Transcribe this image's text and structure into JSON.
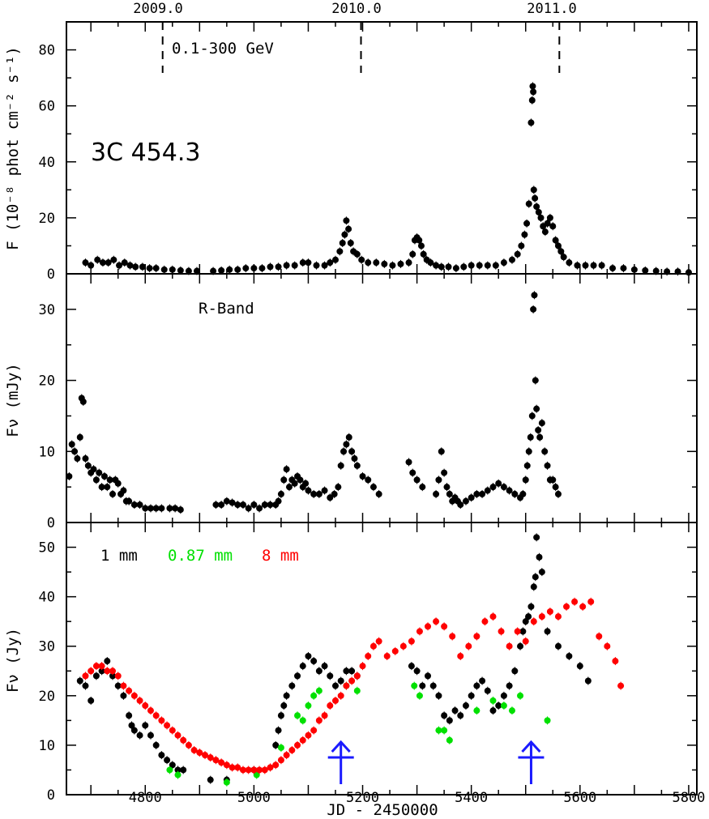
{
  "chart_data": [
    {
      "type": "scatter",
      "panel": "gamma",
      "energy_band_label": "0.1-300 GeV",
      "source_label": "3C 454.3",
      "ylabel": "F (10⁻⁸ phot cm⁻² s⁻¹)",
      "ylim": [
        0,
        90
      ],
      "yticks": [
        0,
        20,
        40,
        60,
        80
      ],
      "xlim": [
        4655,
        5815
      ],
      "top_axis": {
        "tick_labels": [
          "2009.0",
          "2010.0",
          "2011.0"
        ],
        "tick_jd": [
          4832,
          5197,
          5562
        ]
      },
      "marker_color": "#000000",
      "series": [
        {
          "x": [
            4690,
            4700,
            4712,
            4722,
            4732,
            4742,
            4752,
            4762,
            4772,
            4782,
            4795,
            4808,
            4820,
            4835,
            4850,
            4865,
            4880,
            4895,
            4925,
            4940,
            4955,
            4970,
            4985,
            5000,
            5015,
            5030,
            5045,
            5060,
            5075,
            5090,
            5100,
            5115,
            5130,
            5140,
            5150,
            5158,
            5163,
            5167,
            5170,
            5174,
            5178,
            5183,
            5190,
            5198,
            5210,
            5225,
            5240,
            5255,
            5270,
            5285,
            5292,
            5296,
            5300,
            5304,
            5308,
            5312,
            5318,
            5325,
            5335,
            5345,
            5358,
            5372,
            5386,
            5400,
            5415,
            5430,
            5445,
            5460,
            5475,
            5485,
            5492,
            5498,
            5502,
            5506,
            5510,
            5512,
            5513,
            5514,
            5515,
            5517,
            5520,
            5524,
            5528,
            5532,
            5536,
            5540,
            5545,
            5550,
            5555,
            5560,
            5565,
            5570,
            5580,
            5595,
            5610,
            5625,
            5640,
            5660,
            5680,
            5700,
            5720,
            5740,
            5760,
            5780,
            5800
          ],
          "y": [
            4,
            3,
            5,
            4,
            4,
            5,
            3,
            4,
            3,
            2.5,
            2.5,
            2,
            2,
            1.5,
            1.5,
            1.2,
            1,
            1,
            1,
            1.2,
            1.5,
            1.5,
            2,
            2,
            2,
            2.5,
            2.5,
            3,
            3,
            4,
            4,
            3,
            3,
            4,
            5,
            8,
            11,
            14,
            19,
            16,
            11,
            8,
            7,
            5,
            4,
            4,
            3.5,
            3,
            3.5,
            4,
            7,
            12,
            13,
            12,
            10,
            7,
            5,
            4,
            3,
            2.5,
            2.5,
            2,
            2.5,
            3,
            3,
            3,
            3,
            4,
            5,
            7,
            10,
            14,
            18,
            25,
            54,
            62,
            67,
            65,
            30,
            27,
            24,
            22,
            20,
            17,
            15,
            18,
            20,
            17,
            12,
            10,
            8,
            6,
            4,
            3,
            3,
            3,
            3,
            2,
            2,
            1.5,
            1.2,
            1,
            0.8,
            0.8,
            0.5
          ]
        }
      ]
    },
    {
      "type": "scatter",
      "panel": "optical",
      "band_label": "R-Band",
      "ylabel": "Fν (mJy)",
      "ylim": [
        0,
        35
      ],
      "yticks": [
        0,
        10,
        20,
        30
      ],
      "xlim": [
        4655,
        5815
      ],
      "marker_color": "#000000",
      "series": [
        {
          "x": [
            4660,
            4665,
            4670,
            4675,
            4680,
            4683,
            4686,
            4690,
            4695,
            4700,
            4705,
            4710,
            4715,
            4720,
            4725,
            4730,
            4735,
            4740,
            4745,
            4750,
            4755,
            4760,
            4765,
            4770,
            4780,
            4790,
            4800,
            4810,
            4820,
            4830,
            4845,
            4855,
            4865,
            4930,
            4940,
            4950,
            4960,
            4970,
            4980,
            4990,
            5000,
            5010,
            5020,
            5030,
            5040,
            5045,
            5050,
            5055,
            5060,
            5065,
            5070,
            5075,
            5080,
            5085,
            5090,
            5095,
            5100,
            5110,
            5120,
            5130,
            5140,
            5148,
            5155,
            5160,
            5165,
            5170,
            5175,
            5180,
            5185,
            5190,
            5200,
            5210,
            5220,
            5230,
            5285,
            5292,
            5300,
            5310,
            5335,
            5340,
            5345,
            5350,
            5355,
            5360,
            5365,
            5370,
            5375,
            5380,
            5390,
            5400,
            5410,
            5420,
            5430,
            5440,
            5450,
            5460,
            5470,
            5480,
            5490,
            5495,
            5500,
            5503,
            5506,
            5509,
            5512,
            5514,
            5516,
            5518,
            5520,
            5523,
            5526,
            5530,
            5535,
            5540,
            5545,
            5550,
            5555,
            5560
          ],
          "y": [
            6.5,
            11,
            10,
            9,
            12,
            17.5,
            17,
            9,
            8,
            7,
            7.5,
            6,
            7,
            5,
            6.5,
            5,
            6,
            4,
            6,
            5.5,
            4,
            4.5,
            3,
            3,
            2.5,
            2.5,
            2,
            2,
            2,
            2,
            2,
            2,
            1.8,
            2.5,
            2.5,
            3,
            2.8,
            2.5,
            2.5,
            2,
            2.5,
            2,
            2.5,
            2.5,
            2.5,
            3,
            4,
            6,
            7.5,
            5,
            6,
            5.5,
            6.5,
            6,
            5,
            5.5,
            4.5,
            4,
            4,
            4.5,
            3.5,
            4,
            5,
            8,
            10,
            11,
            12,
            10,
            9,
            8,
            6.5,
            6,
            5,
            4,
            8.5,
            7,
            6,
            5,
            4,
            6,
            10,
            7,
            5,
            4,
            3,
            3.5,
            3,
            2.5,
            3,
            3.5,
            4,
            4,
            4.5,
            5,
            5.5,
            5,
            4.5,
            4,
            3.5,
            4,
            6,
            8,
            10,
            12,
            15,
            30,
            32,
            20,
            16,
            13,
            12,
            14,
            10,
            8,
            6,
            6,
            5,
            4
          ]
        }
      ]
    },
    {
      "type": "scatter",
      "panel": "radio",
      "legend": [
        "1 mm",
        "0.87 mm",
        "8 mm"
      ],
      "ylabel": "Fν (Jy)",
      "xlabel": "JD - 2450000",
      "ylim": [
        0,
        55
      ],
      "yticks": [
        0,
        10,
        20,
        30,
        40,
        50
      ],
      "xlim": [
        4655,
        5815
      ],
      "xticks": [
        4800,
        5000,
        5200,
        5400,
        5600,
        5800
      ],
      "arrows_x": [
        5160,
        5510
      ],
      "series": [
        {
          "name": "1 mm",
          "color": "#000000",
          "x": [
            4680,
            4690,
            4700,
            4710,
            4720,
            4730,
            4740,
            4750,
            4760,
            4770,
            4775,
            4780,
            4790,
            4800,
            4810,
            4820,
            4830,
            4840,
            4850,
            4860,
            4870,
            4920,
            4950,
            5000,
            5040,
            5045,
            5050,
            5055,
            5060,
            5070,
            5080,
            5090,
            5100,
            5110,
            5120,
            5130,
            5140,
            5150,
            5160,
            5170,
            5180,
            5190,
            5290,
            5300,
            5310,
            5320,
            5330,
            5340,
            5350,
            5360,
            5370,
            5380,
            5390,
            5400,
            5410,
            5420,
            5430,
            5440,
            5450,
            5460,
            5470,
            5480,
            5490,
            5495,
            5500,
            5505,
            5510,
            5515,
            5518,
            5520,
            5525,
            5530,
            5540,
            5560,
            5580,
            5600,
            5615
          ],
          "y": [
            23,
            22,
            19,
            24,
            25,
            27,
            24,
            22,
            20,
            16,
            14,
            13,
            12,
            14,
            12,
            10,
            8,
            7,
            6,
            5,
            5,
            3,
            3,
            5,
            10,
            13,
            16,
            18,
            20,
            22,
            24,
            26,
            28,
            27,
            25,
            26,
            24,
            22,
            23,
            25,
            25,
            24,
            26,
            25,
            22,
            24,
            22,
            20,
            16,
            15,
            17,
            16,
            18,
            20,
            22,
            23,
            21,
            17,
            18,
            20,
            22,
            25,
            30,
            33,
            35,
            36,
            38,
            42,
            44,
            52,
            48,
            45,
            33,
            30,
            28,
            26,
            23
          ]
        },
        {
          "name": "0.87 mm",
          "color": "#00e000",
          "x": [
            4845,
            4860,
            4950,
            5005,
            5050,
            5080,
            5090,
            5100,
            5110,
            5120,
            5170,
            5190,
            5295,
            5305,
            5340,
            5350,
            5360,
            5410,
            5440,
            5460,
            5475,
            5490,
            5540
          ],
          "y": [
            5,
            4,
            2.5,
            4,
            9.5,
            16,
            15,
            18,
            20,
            21,
            22,
            21,
            22,
            20,
            13,
            13,
            11,
            17,
            19,
            18,
            17,
            20,
            15
          ]
        },
        {
          "name": "8 mm",
          "color": "#ff0000",
          "x": [
            4690,
            4700,
            4710,
            4720,
            4730,
            4740,
            4750,
            4760,
            4770,
            4780,
            4790,
            4800,
            4810,
            4820,
            4830,
            4840,
            4850,
            4860,
            4870,
            4880,
            4890,
            4900,
            4910,
            4920,
            4930,
            4940,
            4950,
            4960,
            4970,
            4980,
            4990,
            5000,
            5010,
            5020,
            5030,
            5040,
            5050,
            5060,
            5070,
            5080,
            5090,
            5100,
            5110,
            5120,
            5130,
            5140,
            5150,
            5160,
            5170,
            5180,
            5190,
            5200,
            5210,
            5220,
            5230,
            5245,
            5260,
            5275,
            5290,
            5305,
            5320,
            5335,
            5350,
            5365,
            5380,
            5395,
            5410,
            5425,
            5440,
            5455,
            5470,
            5485,
            5500,
            5515,
            5530,
            5545,
            5560,
            5575,
            5590,
            5605,
            5620,
            5635,
            5650,
            5665,
            5675
          ],
          "y": [
            24,
            25,
            26,
            26,
            25,
            25,
            24,
            22,
            21,
            20,
            19,
            18,
            17,
            16,
            15,
            14,
            13,
            12,
            11,
            10,
            9,
            8.5,
            8,
            7.5,
            7,
            6.5,
            6,
            5.5,
            5.5,
            5,
            5,
            5,
            5,
            5,
            5.5,
            6,
            7,
            8,
            9,
            10,
            11,
            12,
            13,
            15,
            16,
            18,
            19,
            20,
            22,
            23,
            24,
            26,
            28,
            30,
            31,
            28,
            29,
            30,
            31,
            33,
            34,
            35,
            34,
            32,
            28,
            30,
            32,
            35,
            36,
            33,
            30,
            33,
            31,
            35,
            36,
            37,
            36,
            38,
            39,
            38,
            39,
            32,
            30,
            27,
            22
          ]
        }
      ]
    }
  ]
}
